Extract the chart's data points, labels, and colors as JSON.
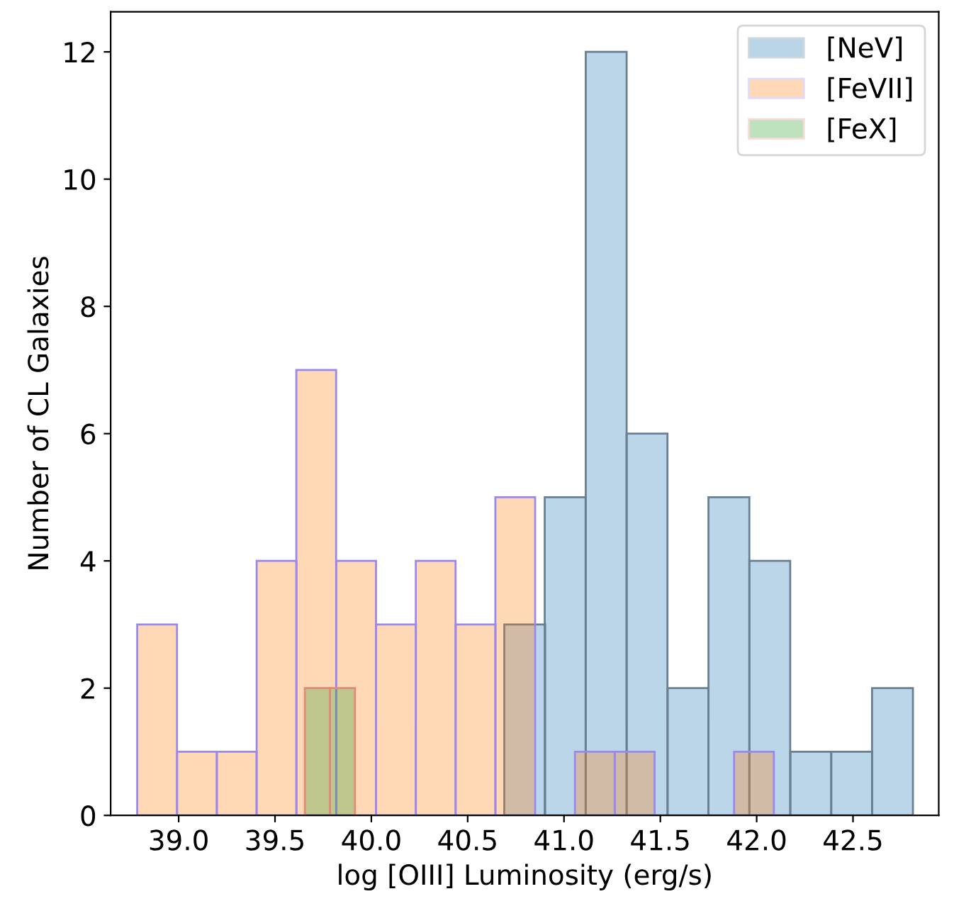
{
  "chart_data": {
    "type": "bar",
    "xlabel": "log [OIII] Luminosity (erg/s)",
    "ylabel": "Number of CL Galaxies",
    "series": [
      {
        "name": "[NeV]",
        "color": "#1f77b4",
        "x": [
          40.796,
          41.006,
          41.219,
          41.431,
          41.644,
          41.856,
          42.068,
          42.281,
          42.493,
          42.705
        ],
        "values": [
          3,
          5,
          12,
          6,
          2,
          5,
          4,
          1,
          1,
          2
        ]
      },
      {
        "name": "[FeVII]",
        "color": "#ff7f0e",
        "x": [
          38.888,
          39.095,
          39.301,
          39.508,
          39.714,
          39.921,
          40.128,
          40.334,
          40.541,
          40.747,
          40.954,
          41.16,
          41.367,
          41.573,
          41.78,
          41.986
        ],
        "values": [
          3,
          1,
          1,
          4,
          7,
          4,
          3,
          4,
          3,
          5,
          0,
          1,
          1,
          0,
          0,
          1
        ]
      },
      {
        "name": "[FeX]",
        "color": "#2ca02c",
        "x": [
          39.72,
          39.85
        ],
        "values": [
          2,
          2
        ]
      }
    ],
    "xlim": [
      38.647,
      42.945
    ],
    "ylim": [
      0,
      12.63
    ],
    "xticks": [
      {
        "value": 39,
        "label": "39.0"
      },
      39.5,
      {
        "value": 40,
        "label": "40.0"
      },
      40.5,
      {
        "value": 41,
        "label": "41.0"
      },
      41.5,
      {
        "value": 42,
        "label": "42.0"
      },
      42.5
    ],
    "yticks": [
      0,
      2,
      4,
      6,
      8,
      10,
      12
    ],
    "legend": "top right"
  }
}
